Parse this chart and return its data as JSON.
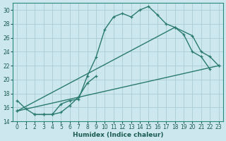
{
  "xlabel": "Humidex (Indice chaleur)",
  "bg_color": "#cce8ee",
  "grid_color": "#aaccd4",
  "line_color": "#2a7a6e",
  "xlim": [
    -0.5,
    23.5
  ],
  "ylim": [
    14,
    31
  ],
  "xticks": [
    0,
    1,
    2,
    3,
    4,
    5,
    6,
    7,
    8,
    9,
    10,
    11,
    12,
    13,
    14,
    15,
    16,
    17,
    18,
    19,
    20,
    21,
    22,
    23
  ],
  "yticks": [
    14,
    16,
    18,
    20,
    22,
    24,
    26,
    28,
    30
  ],
  "line1_x": [
    0,
    1,
    2,
    3,
    4,
    5,
    6,
    7,
    8,
    9,
    10,
    11,
    12,
    13,
    14,
    15,
    16,
    17,
    18,
    19,
    20,
    21,
    22
  ],
  "line1_y": [
    17,
    15.8,
    15,
    15,
    15,
    16.5,
    17,
    17.2,
    20.5,
    23.2,
    27.2,
    29.0,
    29.5,
    29,
    30,
    30.5,
    29.3,
    28,
    27.5,
    26.5,
    24,
    23.3,
    21.5
  ],
  "line2_x": [
    2,
    3,
    4,
    5,
    6,
    7,
    8,
    9
  ],
  "line2_y": [
    15,
    15,
    15,
    15.3,
    16.3,
    17.5,
    19.5,
    20.5
  ],
  "line3_x": [
    0,
    23
  ],
  "line3_y": [
    15.5,
    22
  ],
  "line4_x": [
    0,
    18,
    20,
    21,
    22,
    23
  ],
  "line4_y": [
    15.5,
    27.5,
    26.3,
    24,
    23.3,
    22
  ]
}
